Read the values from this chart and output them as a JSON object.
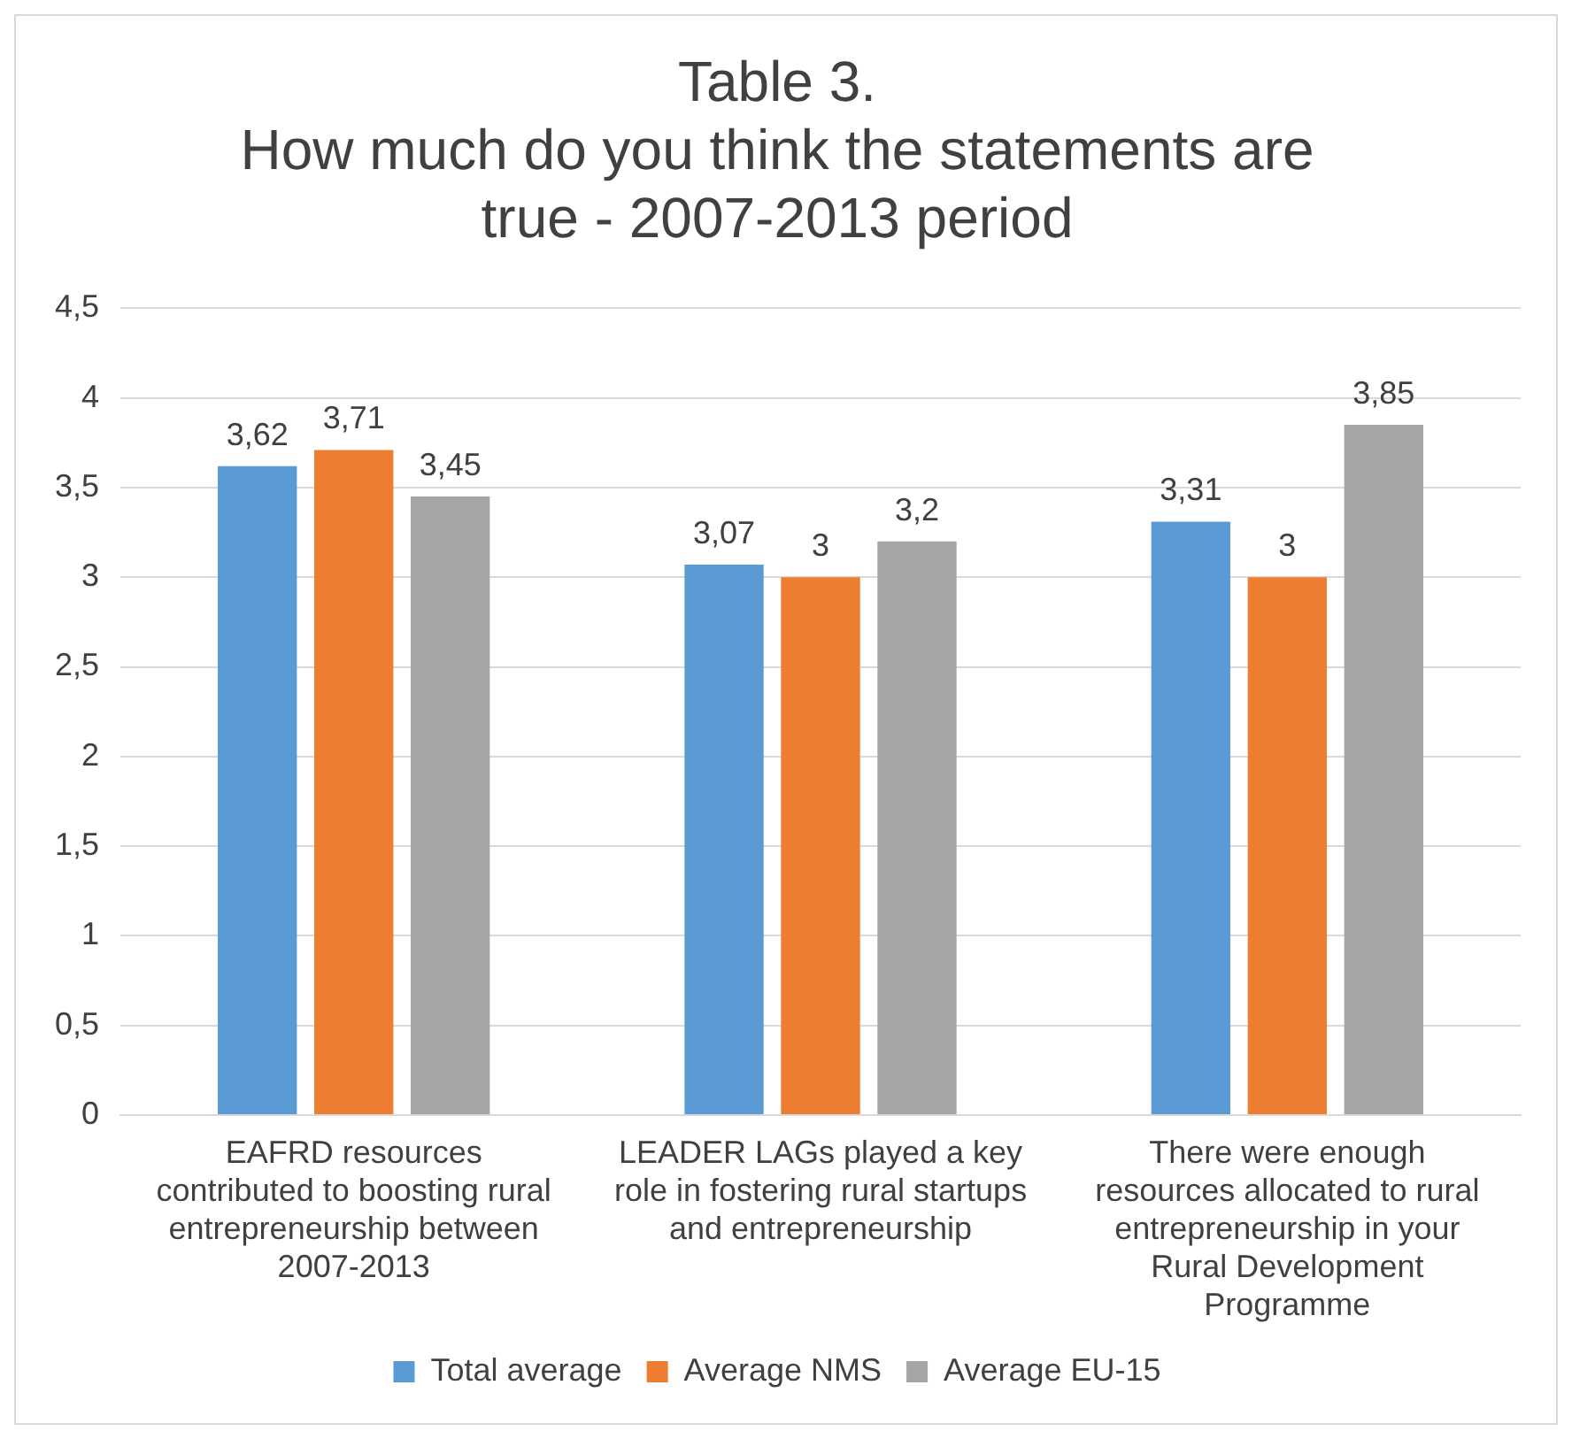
{
  "chart_data": {
    "type": "bar",
    "title": "Table 3.\nHow much do you think the statements are\ntrue - 2007-2013 period",
    "categories": [
      "EAFRD resources contributed to boosting rural entrepreneurship between 2007-2013",
      "LEADER LAGs played a key role in fostering rural startups and entrepreneurship",
      "There were enough resources allocated to rural entrepreneurship in your Rural Development Programme"
    ],
    "series": [
      {
        "name": "Total average",
        "color": "#5b9bd5",
        "values": [
          3.62,
          3.07,
          3.31
        ],
        "value_labels": [
          "3,62",
          "3,07",
          "3,31"
        ]
      },
      {
        "name": "Average NMS",
        "color": "#ed7d31",
        "values": [
          3.71,
          3.0,
          3.0
        ],
        "value_labels": [
          "3,71",
          "3",
          "3"
        ]
      },
      {
        "name": "Average EU-15",
        "color": "#a5a5a5",
        "values": [
          3.45,
          3.2,
          3.85
        ],
        "value_labels": [
          "3,45",
          "3,2",
          "3,85"
        ]
      }
    ],
    "ylim": [
      0,
      4.5
    ],
    "yticks": [
      0,
      {
        "value": 0.5,
        "label": "0,5"
      },
      1,
      {
        "value": 1.5,
        "label": "1,5"
      },
      2,
      {
        "value": 2.5,
        "label": "2,5"
      },
      3,
      {
        "value": 3.5,
        "label": "3,5"
      },
      4,
      {
        "value": 4.5,
        "label": "4,5"
      }
    ],
    "grid": "y",
    "legend": "bottom"
  }
}
